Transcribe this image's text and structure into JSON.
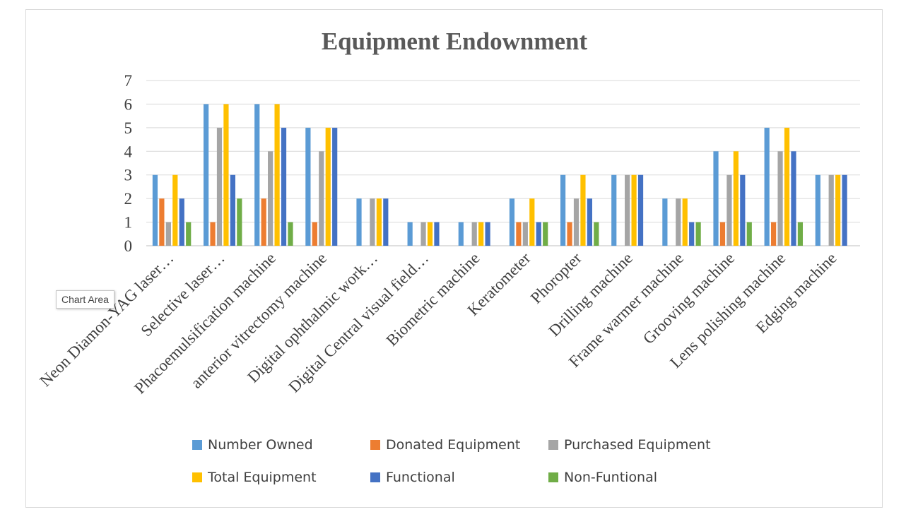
{
  "tooltip": {
    "label": "Chart Area"
  },
  "chart_data": {
    "type": "bar",
    "title": "Equipment Endownment",
    "xlabel": "",
    "ylabel": "",
    "ylim": [
      0,
      7
    ],
    "yticks": [
      0,
      1,
      2,
      3,
      4,
      5,
      6,
      7
    ],
    "grid": true,
    "legend_position": "bottom",
    "categories": [
      "Neon Diamon-YAG laser…",
      "Selective laser…",
      "Phacoemulsification machine",
      "anterior vitrectomy machine",
      "Digital ophthalmic work…",
      "Digital Central visual field…",
      "Biometric machine",
      "Keratometer",
      "Phoropter",
      "Drilling machine",
      "Frame warmer machine",
      "Grooving machine",
      "Lens polishing machine",
      "Edging machine"
    ],
    "series": [
      {
        "name": "Number Owned",
        "color": "#5b9bd5",
        "values": [
          3,
          6,
          6,
          5,
          2,
          1,
          1,
          2,
          3,
          3,
          2,
          4,
          5,
          3
        ]
      },
      {
        "name": "Donated Equipment",
        "color": "#ed7d31",
        "values": [
          2,
          1,
          2,
          1,
          0,
          0,
          0,
          1,
          1,
          0,
          0,
          1,
          1,
          0
        ]
      },
      {
        "name": "Purchased Equipment",
        "color": "#a5a5a5",
        "values": [
          1,
          5,
          4,
          4,
          2,
          1,
          1,
          1,
          2,
          3,
          2,
          3,
          4,
          3
        ]
      },
      {
        "name": "Total Equipment",
        "color": "#ffc000",
        "values": [
          3,
          6,
          6,
          5,
          2,
          1,
          1,
          2,
          3,
          3,
          2,
          4,
          5,
          3
        ]
      },
      {
        "name": "Functional",
        "color": "#4472c4",
        "values": [
          2,
          3,
          5,
          5,
          2,
          1,
          1,
          1,
          2,
          3,
          1,
          3,
          4,
          3
        ]
      },
      {
        "name": "Non-Funtional",
        "color": "#70ad47",
        "values": [
          1,
          2,
          1,
          0,
          0,
          0,
          0,
          1,
          1,
          0,
          1,
          1,
          1,
          0
        ]
      }
    ]
  }
}
